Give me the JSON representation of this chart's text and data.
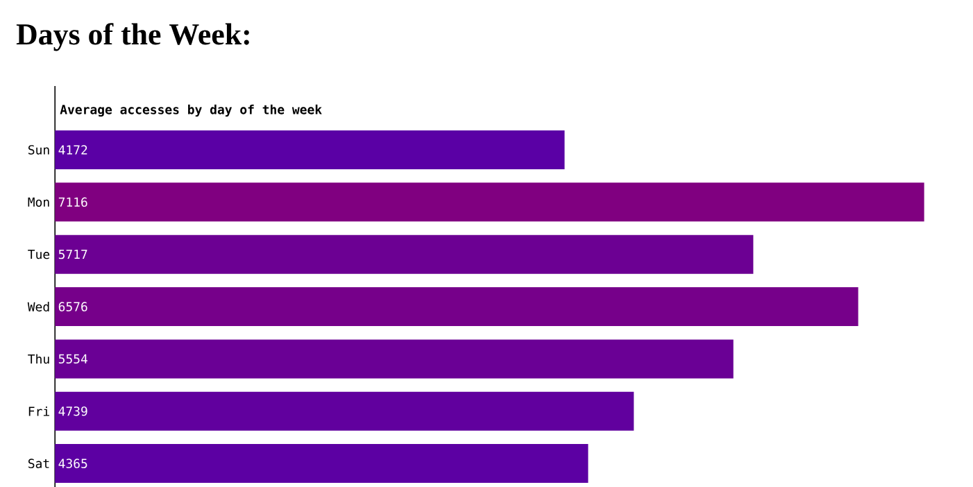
{
  "chart_data": {
    "type": "bar",
    "orientation": "horizontal",
    "title": "Days of the Week:",
    "subtitle": "Average accesses by day of the week",
    "categories": [
      "Sun",
      "Mon",
      "Tue",
      "Wed",
      "Thu",
      "Fri",
      "Sat"
    ],
    "values": [
      4172,
      7116,
      5717,
      6576,
      5554,
      4739,
      4365
    ],
    "colors": [
      "#5a00a5",
      "#800080",
      "#6c0093",
      "#76008a",
      "#6a0095",
      "#61009e",
      "#5c00a3"
    ],
    "data_labels": true,
    "tick_labels": "y"
  }
}
